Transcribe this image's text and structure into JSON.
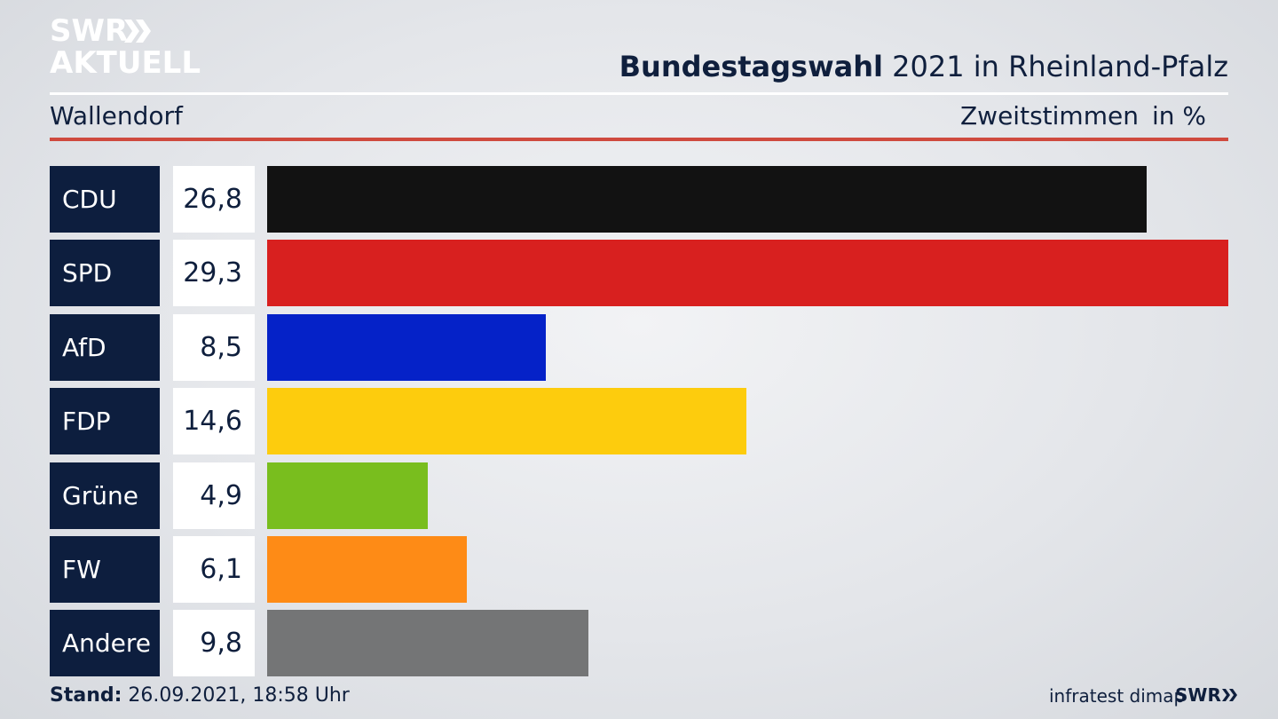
{
  "logo": {
    "line1": "SWR",
    "line2": "AKTUELL"
  },
  "title_bold": "Bundestagswahl",
  "title_rest": " 2021 in Rheinland-Pfalz",
  "location": "Wallendorf",
  "subtitle": "Zweitstimmen",
  "unit": "in %",
  "footer": {
    "stand_label": "Stand:",
    "stand_value": " 26.09.2021, 18:58 Uhr",
    "source": "infratest dimap",
    "brand": "SWR"
  },
  "chart_data": {
    "type": "bar",
    "orientation": "horizontal",
    "categories": [
      "CDU",
      "SPD",
      "AfD",
      "FDP",
      "Grüne",
      "FW",
      "Andere"
    ],
    "values": [
      26.8,
      29.3,
      8.5,
      14.6,
      4.9,
      6.1,
      9.8
    ],
    "value_labels": [
      "26,8",
      "29,3",
      "8,5",
      "14,6",
      "4,9",
      "6,1",
      "9,8"
    ],
    "colors": [
      "#121212",
      "#d8201f",
      "#0522c8",
      "#fdcc0d",
      "#79be1e",
      "#fe8b16",
      "#747576"
    ],
    "max_value": 29.3
  }
}
